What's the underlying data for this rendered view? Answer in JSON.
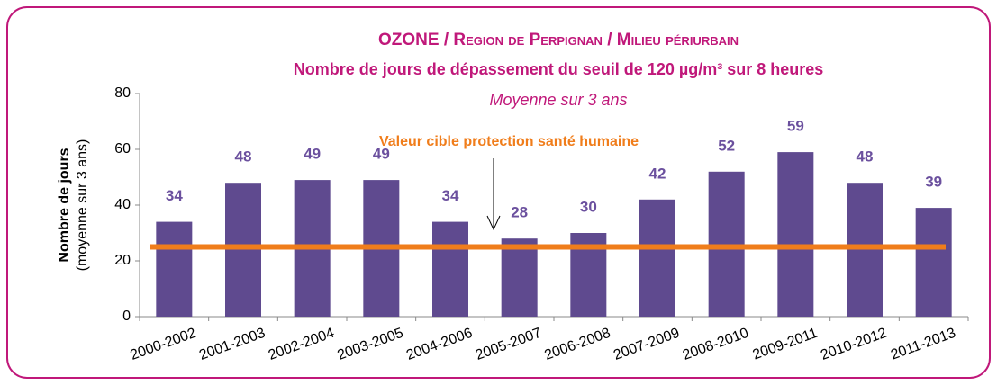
{
  "chart_data": {
    "type": "bar",
    "title": "OZONE / Region de Perpignan  / Milieu périurbain",
    "subtitle": "Nombre de jours de dépassement du seuil de 120 µg/m³ sur 8 heures",
    "subtitle2": "Moyenne sur 3 ans",
    "y_label": "Nombre de jours",
    "y_label_sub": "(moyenne sur 3 ans)",
    "categories": [
      "2000-2002",
      "2001-2003",
      "2002-2004",
      "2003-2005",
      "2004-2006",
      "2005-2007",
      "2006-2008",
      "2007-2009",
      "2008-2010",
      "2009-2011",
      "2010-2012",
      "2011-2013"
    ],
    "values": [
      34,
      48,
      49,
      49,
      34,
      28,
      30,
      42,
      52,
      59,
      48,
      39
    ],
    "color": "#5f4a8f",
    "label_color": "#6b509e",
    "ylim": [
      0,
      80
    ],
    "yticks": [
      0,
      20,
      40,
      60,
      80
    ],
    "target": {
      "value": 25,
      "label": "Valeur cible protection santé humaine",
      "color": "#f07d1b"
    }
  }
}
